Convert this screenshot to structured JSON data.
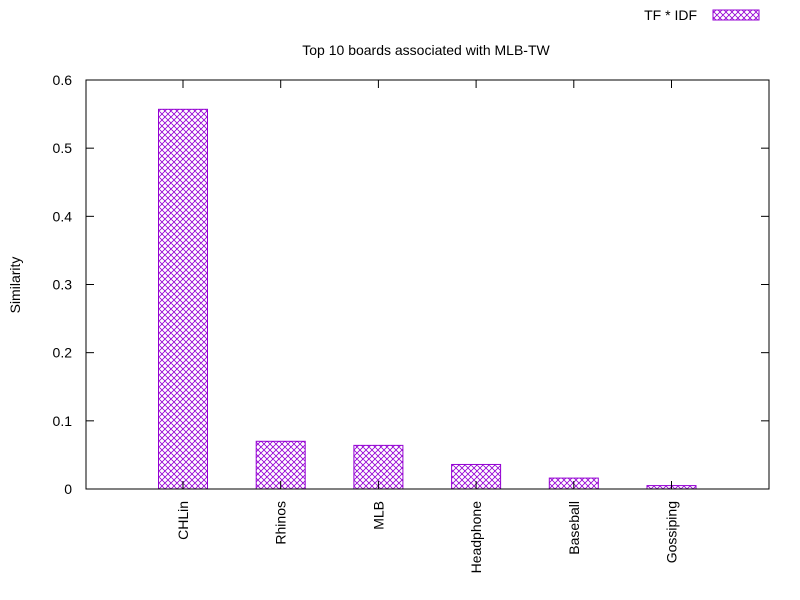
{
  "chart_data": {
    "type": "bar",
    "title": "Top 10 boards associated with MLB-TW",
    "xlabel": "",
    "ylabel": "Similarity",
    "ylim": [
      0,
      0.6
    ],
    "yticks": [
      "0",
      "0.1",
      "0.2",
      "0.3",
      "0.4",
      "0.5",
      "0.6"
    ],
    "categories": [
      "CHLin",
      "Rhinos",
      "MLB",
      "Headphone",
      "Baseball",
      "Gossiping"
    ],
    "series": [
      {
        "name": "TF * IDF",
        "values": [
          0.557,
          0.07,
          0.064,
          0.036,
          0.016,
          0.005
        ]
      }
    ],
    "legend_position": "top-right",
    "grid": false,
    "bar_style": "crosshatch",
    "bar_color": "#9400d3"
  }
}
